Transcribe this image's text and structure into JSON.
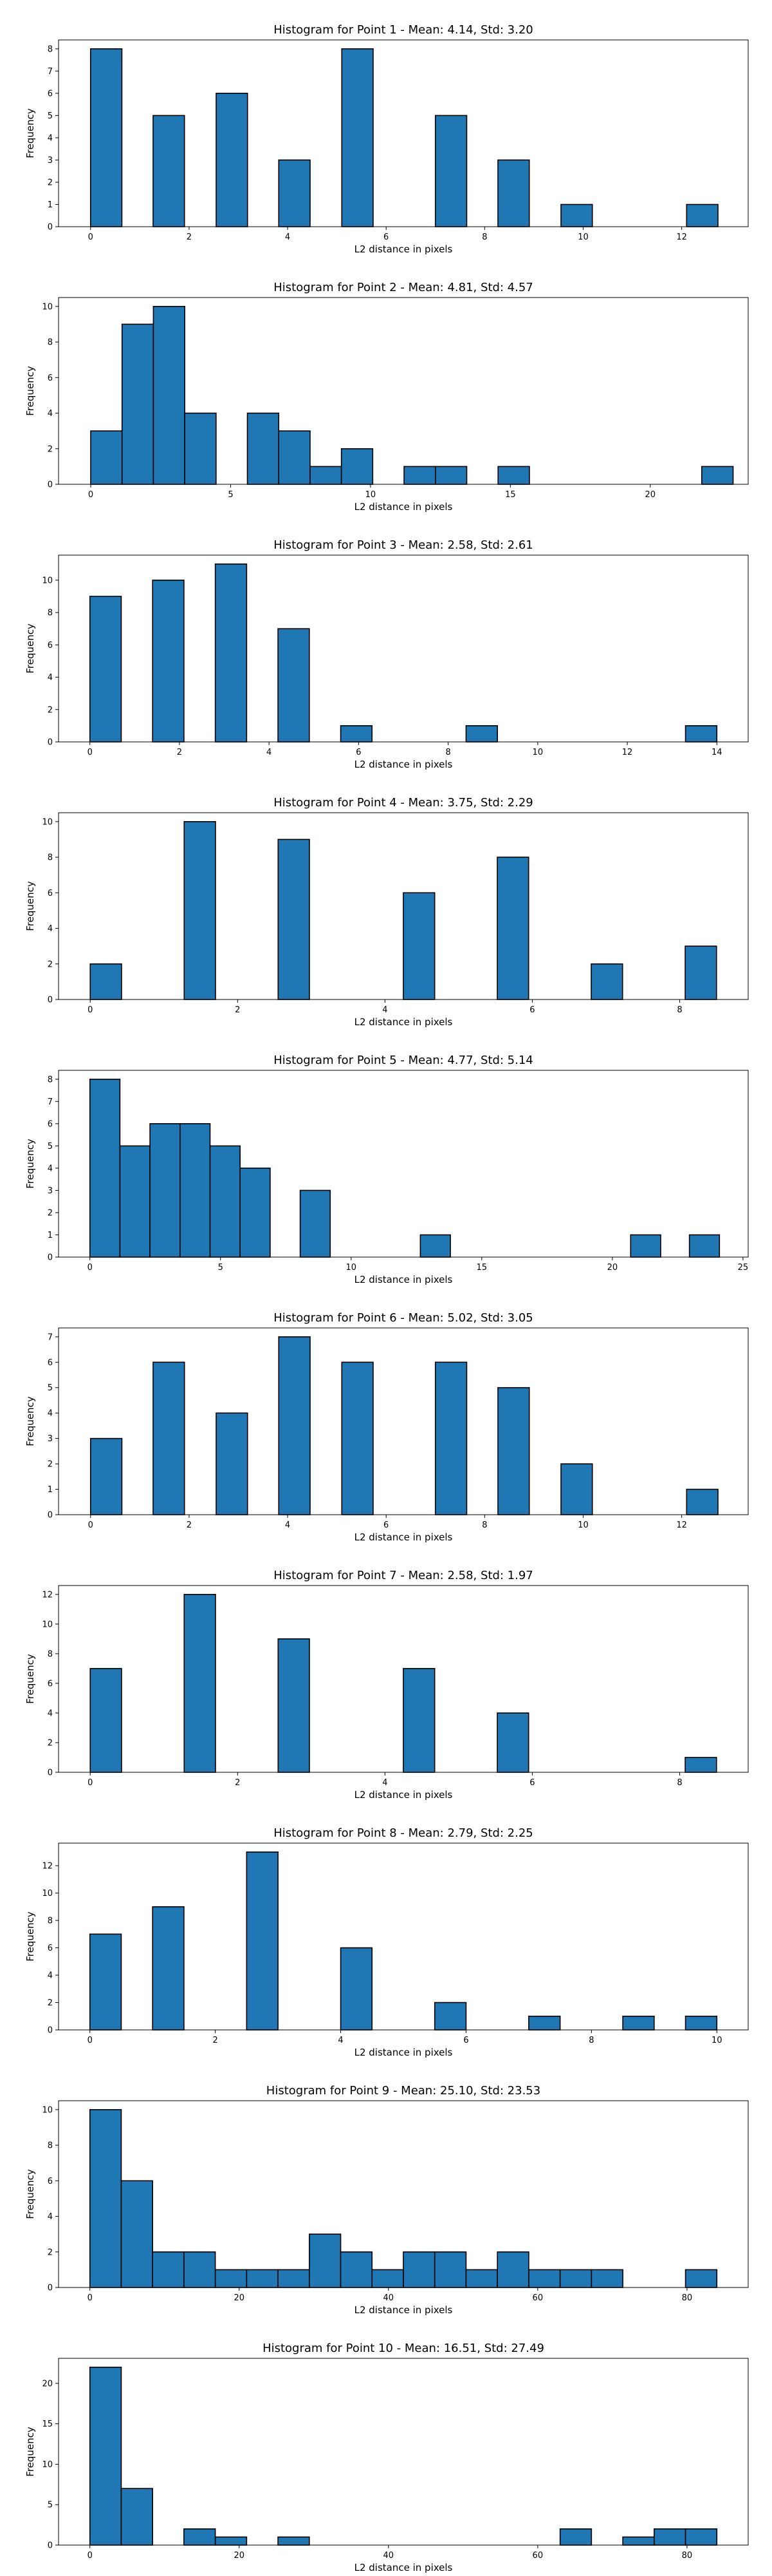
{
  "chart_data": [
    {
      "type": "bar",
      "title": "Histogram for Point 1 - Mean: 4.14, Std: 3.20",
      "xlabel": "L2 distance in pixels",
      "ylabel": "Frequency",
      "xlim": [
        -0.65,
        13.35
      ],
      "ylim": [
        0,
        8.4
      ],
      "xticks": [
        0,
        2,
        4,
        6,
        8,
        10,
        12
      ],
      "yticks": [
        0,
        1,
        2,
        3,
        4,
        5,
        6,
        7,
        8
      ],
      "bin_width": 0.636,
      "bins": [
        {
          "x": 0.0,
          "v": 8
        },
        {
          "x": 1.27,
          "v": 5
        },
        {
          "x": 2.55,
          "v": 6
        },
        {
          "x": 3.82,
          "v": 3
        },
        {
          "x": 5.1,
          "v": 8
        },
        {
          "x": 7.0,
          "v": 5
        },
        {
          "x": 8.27,
          "v": 3
        },
        {
          "x": 9.55,
          "v": 1
        },
        {
          "x": 12.1,
          "v": 1
        }
      ]
    },
    {
      "type": "bar",
      "title": "Histogram for Point 2 - Mean: 4.81, Std: 4.57",
      "xlabel": "L2 distance in pixels",
      "ylabel": "Frequency",
      "xlim": [
        -1.15,
        23.5
      ],
      "ylim": [
        0,
        10.5
      ],
      "xticks": [
        0,
        5,
        10,
        15,
        20
      ],
      "yticks": [
        0,
        2,
        4,
        6,
        8,
        10
      ],
      "bin_width": 1.12,
      "bins": [
        {
          "x": 0.0,
          "v": 3
        },
        {
          "x": 1.12,
          "v": 9
        },
        {
          "x": 2.24,
          "v": 10
        },
        {
          "x": 3.36,
          "v": 4
        },
        {
          "x": 5.6,
          "v": 4
        },
        {
          "x": 6.72,
          "v": 3
        },
        {
          "x": 7.84,
          "v": 1
        },
        {
          "x": 8.96,
          "v": 2
        },
        {
          "x": 11.2,
          "v": 1
        },
        {
          "x": 12.32,
          "v": 1
        },
        {
          "x": 14.56,
          "v": 1
        },
        {
          "x": 21.84,
          "v": 1
        }
      ]
    },
    {
      "type": "bar",
      "title": "Histogram for Point 3 - Mean: 2.58, Std: 2.61",
      "xlabel": "L2 distance in pixels",
      "ylabel": "Frequency",
      "xlim": [
        -0.7,
        14.7
      ],
      "ylim": [
        0,
        11.55
      ],
      "xticks": [
        0,
        2,
        4,
        6,
        8,
        10,
        12,
        14
      ],
      "yticks": [
        0,
        2,
        4,
        6,
        8,
        10
      ],
      "bin_width": 0.7,
      "bins": [
        {
          "x": 0.0,
          "v": 9
        },
        {
          "x": 1.4,
          "v": 10
        },
        {
          "x": 2.8,
          "v": 11
        },
        {
          "x": 4.2,
          "v": 7
        },
        {
          "x": 5.6,
          "v": 1
        },
        {
          "x": 8.4,
          "v": 1
        },
        {
          "x": 13.3,
          "v": 1
        }
      ]
    },
    {
      "type": "bar",
      "title": "Histogram for Point 4 - Mean: 3.75, Std: 2.29",
      "xlabel": "L2 distance in pixels",
      "ylabel": "Frequency",
      "xlim": [
        -0.43,
        8.93
      ],
      "ylim": [
        0,
        10.5
      ],
      "xticks": [
        0,
        2,
        4,
        6,
        8
      ],
      "yticks": [
        0,
        2,
        4,
        6,
        8,
        10
      ],
      "bin_width": 0.425,
      "bins": [
        {
          "x": 0.0,
          "v": 2
        },
        {
          "x": 1.275,
          "v": 10
        },
        {
          "x": 2.55,
          "v": 9
        },
        {
          "x": 4.25,
          "v": 6
        },
        {
          "x": 5.525,
          "v": 8
        },
        {
          "x": 6.8,
          "v": 2
        },
        {
          "x": 8.075,
          "v": 3
        }
      ]
    },
    {
      "type": "bar",
      "title": "Histogram for Point 5 - Mean: 4.77, Std: 5.14",
      "xlabel": "L2 distance in pixels",
      "ylabel": "Frequency",
      "xlim": [
        -1.2,
        25.2
      ],
      "ylim": [
        0,
        8.4
      ],
      "xticks": [
        0,
        5,
        10,
        15,
        20,
        25
      ],
      "yticks": [
        0,
        1,
        2,
        3,
        4,
        5,
        6,
        7,
        8
      ],
      "bin_width": 1.15,
      "bins": [
        {
          "x": 0.0,
          "v": 8
        },
        {
          "x": 1.15,
          "v": 5
        },
        {
          "x": 2.3,
          "v": 6
        },
        {
          "x": 3.45,
          "v": 6
        },
        {
          "x": 4.6,
          "v": 5
        },
        {
          "x": 5.75,
          "v": 4
        },
        {
          "x": 8.05,
          "v": 3
        },
        {
          "x": 12.65,
          "v": 1
        },
        {
          "x": 20.7,
          "v": 1
        },
        {
          "x": 22.95,
          "v": 1
        }
      ]
    },
    {
      "type": "bar",
      "title": "Histogram for Point 6 - Mean: 5.02, Std: 3.05",
      "xlabel": "L2 distance in pixels",
      "ylabel": "Frequency",
      "xlim": [
        -0.65,
        13.35
      ],
      "ylim": [
        0,
        7.35
      ],
      "xticks": [
        0,
        2,
        4,
        6,
        8,
        10,
        12
      ],
      "yticks": [
        0,
        1,
        2,
        3,
        4,
        5,
        6,
        7
      ],
      "bin_width": 0.636,
      "bins": [
        {
          "x": 0.0,
          "v": 3
        },
        {
          "x": 1.27,
          "v": 6
        },
        {
          "x": 2.55,
          "v": 4
        },
        {
          "x": 3.82,
          "v": 7
        },
        {
          "x": 5.1,
          "v": 6
        },
        {
          "x": 7.0,
          "v": 6
        },
        {
          "x": 8.27,
          "v": 5
        },
        {
          "x": 9.55,
          "v": 2
        },
        {
          "x": 12.1,
          "v": 1
        }
      ]
    },
    {
      "type": "bar",
      "title": "Histogram for Point 7 - Mean: 2.58, Std: 1.97",
      "xlabel": "L2 distance in pixels",
      "ylabel": "Frequency",
      "xlim": [
        -0.43,
        8.93
      ],
      "ylim": [
        0,
        12.6
      ],
      "xticks": [
        0,
        2,
        4,
        6,
        8
      ],
      "yticks": [
        0,
        2,
        4,
        6,
        8,
        10,
        12
      ],
      "bin_width": 0.425,
      "bins": [
        {
          "x": 0.0,
          "v": 7
        },
        {
          "x": 1.275,
          "v": 12
        },
        {
          "x": 2.55,
          "v": 9
        },
        {
          "x": 4.25,
          "v": 7
        },
        {
          "x": 5.525,
          "v": 4
        },
        {
          "x": 8.075,
          "v": 1
        }
      ]
    },
    {
      "type": "bar",
      "title": "Histogram for Point 8 - Mean: 2.79, Std: 2.25",
      "xlabel": "L2 distance in pixels",
      "ylabel": "Frequency",
      "xlim": [
        -0.5,
        10.5
      ],
      "ylim": [
        0,
        13.65
      ],
      "xticks": [
        0,
        2,
        4,
        6,
        8,
        10
      ],
      "yticks": [
        0,
        2,
        4,
        6,
        8,
        10,
        12
      ],
      "bin_width": 0.5,
      "bins": [
        {
          "x": 0.0,
          "v": 7
        },
        {
          "x": 1.0,
          "v": 9
        },
        {
          "x": 2.5,
          "v": 13
        },
        {
          "x": 4.0,
          "v": 6
        },
        {
          "x": 5.5,
          "v": 2
        },
        {
          "x": 7.0,
          "v": 1
        },
        {
          "x": 8.5,
          "v": 1
        },
        {
          "x": 9.5,
          "v": 1
        }
      ]
    },
    {
      "type": "bar",
      "title": "Histogram for Point 9 - Mean: 25.10, Std: 23.53",
      "xlabel": "L2 distance in pixels",
      "ylabel": "Frequency",
      "xlim": [
        -4.2,
        88.2
      ],
      "ylim": [
        0,
        10.5
      ],
      "xticks": [
        0,
        20,
        40,
        60,
        80
      ],
      "yticks": [
        0,
        2,
        4,
        6,
        8,
        10
      ],
      "bin_width": 4.2,
      "bins": [
        {
          "x": 0.0,
          "v": 10
        },
        {
          "x": 4.2,
          "v": 6
        },
        {
          "x": 8.4,
          "v": 2
        },
        {
          "x": 12.6,
          "v": 2
        },
        {
          "x": 16.8,
          "v": 1
        },
        {
          "x": 21.0,
          "v": 1
        },
        {
          "x": 25.2,
          "v": 1
        },
        {
          "x": 29.4,
          "v": 3
        },
        {
          "x": 33.6,
          "v": 2
        },
        {
          "x": 37.8,
          "v": 1
        },
        {
          "x": 42.0,
          "v": 2
        },
        {
          "x": 46.2,
          "v": 2
        },
        {
          "x": 50.4,
          "v": 1
        },
        {
          "x": 54.6,
          "v": 2
        },
        {
          "x": 58.8,
          "v": 1
        },
        {
          "x": 63.0,
          "v": 1
        },
        {
          "x": 67.2,
          "v": 1
        },
        {
          "x": 79.8,
          "v": 1
        }
      ]
    },
    {
      "type": "bar",
      "title": "Histogram for Point 10 - Mean: 16.51, Std: 27.49",
      "xlabel": "L2 distance in pixels",
      "ylabel": "Frequency",
      "xlim": [
        -4.2,
        88.2
      ],
      "ylim": [
        0,
        23.1
      ],
      "xticks": [
        0,
        20,
        40,
        60,
        80
      ],
      "yticks": [
        0,
        5,
        10,
        15,
        20
      ],
      "bin_width": 4.2,
      "bins": [
        {
          "x": 0.0,
          "v": 22
        },
        {
          "x": 4.2,
          "v": 7
        },
        {
          "x": 12.6,
          "v": 2
        },
        {
          "x": 16.8,
          "v": 1
        },
        {
          "x": 25.2,
          "v": 1
        },
        {
          "x": 63.0,
          "v": 2
        },
        {
          "x": 71.4,
          "v": 1
        },
        {
          "x": 75.6,
          "v": 2
        },
        {
          "x": 79.8,
          "v": 2
        }
      ]
    }
  ]
}
